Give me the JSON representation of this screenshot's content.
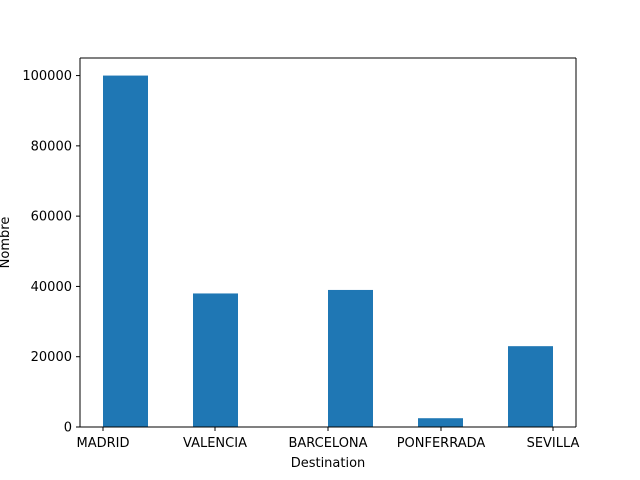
{
  "chart_data": {
    "type": "bar",
    "title": "",
    "xlabel": "Destination",
    "ylabel": "Nombre",
    "categories": [
      "MADRID",
      "VALENCIA",
      "BARCELONA",
      "PONFERRADA",
      "SEVILLA"
    ],
    "x_ticks": [
      "MADRID",
      "VALENCIA",
      "BARCELONA",
      "PONFERRADA",
      "SEVILLA"
    ],
    "values": [
      100000,
      38000,
      39000,
      2500,
      23000
    ],
    "ylim": [
      0,
      105000
    ],
    "y_ticks": [
      0,
      20000,
      40000,
      60000,
      80000,
      100000
    ],
    "grid": false,
    "legend": "none",
    "bar_color": "#1f77b4"
  }
}
